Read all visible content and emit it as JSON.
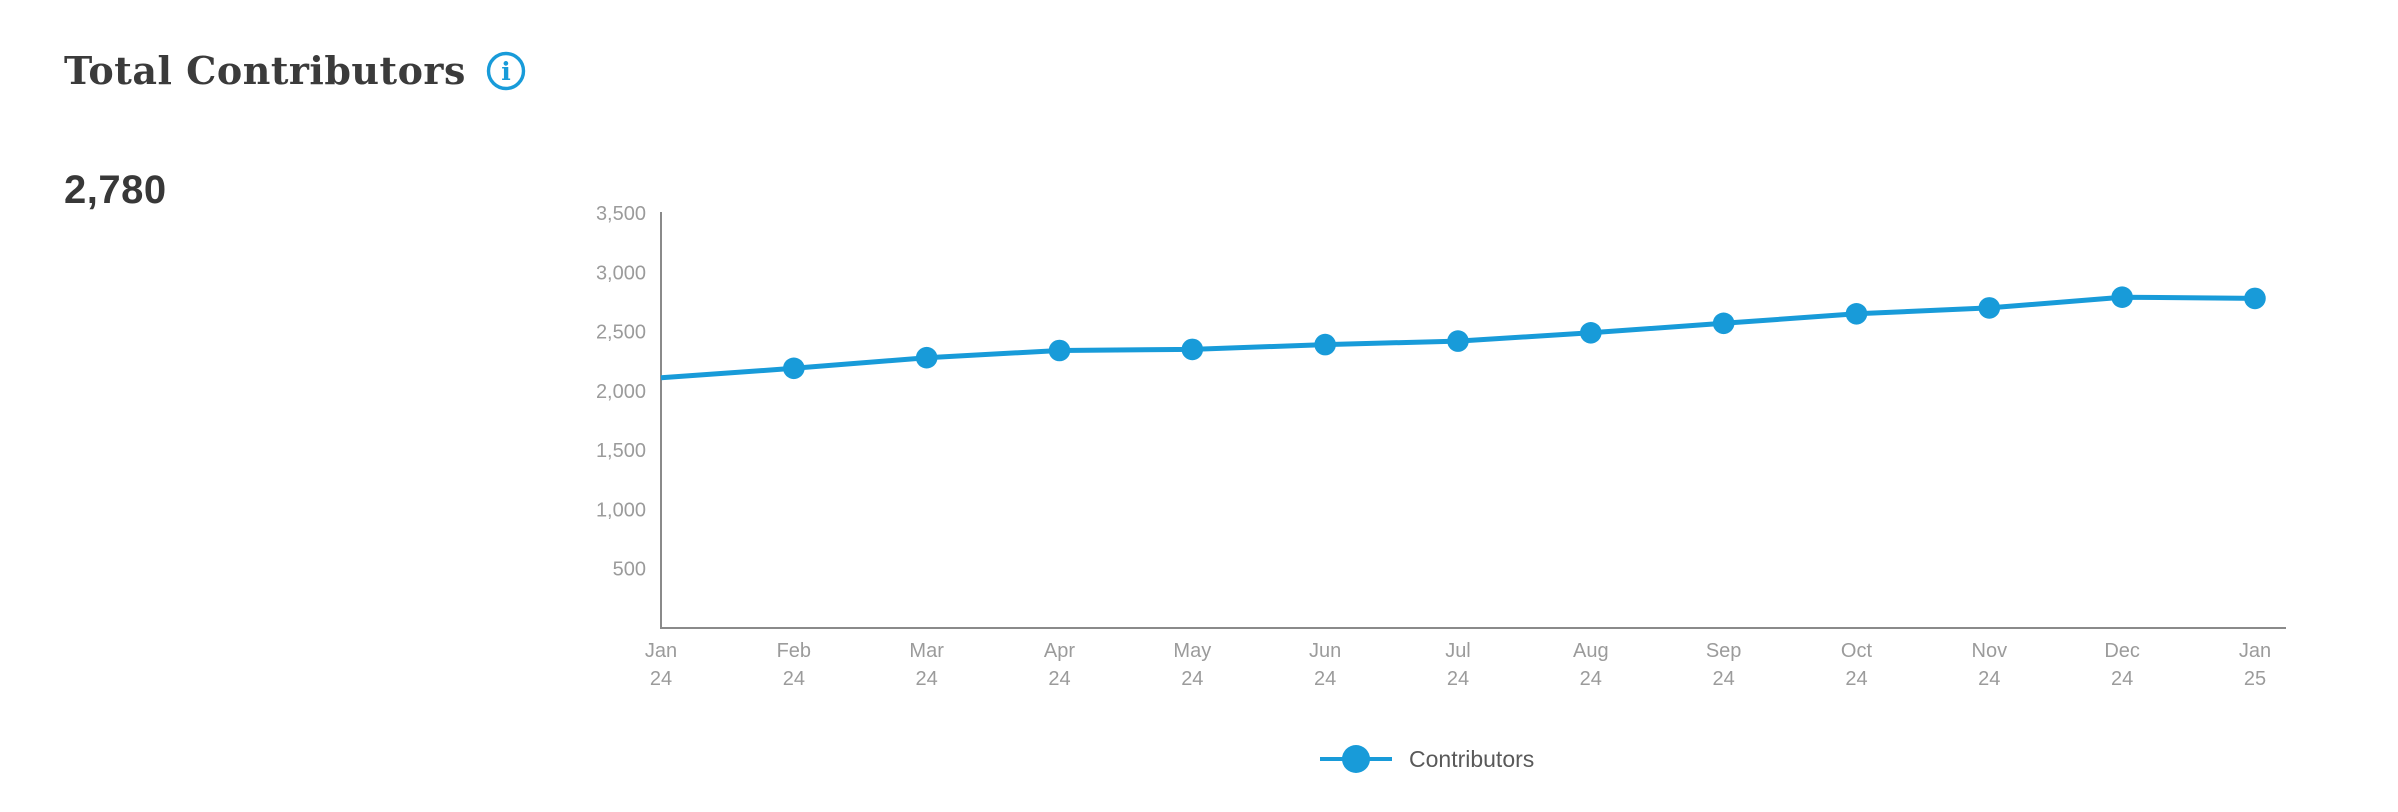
{
  "metric": {
    "title": "Total Contributors",
    "value": "2,780"
  },
  "colors": {
    "accent_blue": "#189bd9",
    "axis_line": "#8a8a8a",
    "tick_text": "#9b9b9b",
    "title_text": "#3b3b3b",
    "value_text": "#383838",
    "legend_text": "#595959"
  },
  "icons": {
    "info": "i"
  },
  "legend": {
    "items": [
      {
        "label": "Contributors",
        "color": "#189bd9"
      }
    ]
  },
  "chart_data": {
    "type": "line",
    "title": "Total Contributors",
    "categories": [
      "Jan 24",
      "Feb 24",
      "Mar 24",
      "Apr 24",
      "May 24",
      "Jun 24",
      "Jul 24",
      "Aug 24",
      "Sep 24",
      "Oct 24",
      "Nov 24",
      "Dec 24",
      "Jan 25"
    ],
    "series": [
      {
        "name": "Contributors",
        "color": "#189bd9",
        "values": [
          2110,
          2190,
          2280,
          2340,
          2350,
          2390,
          2420,
          2490,
          2570,
          2650,
          2700,
          2790,
          2780
        ],
        "marker_on_first_point": false
      }
    ],
    "xlabel": "",
    "ylabel": "",
    "ylim": [
      0,
      3500
    ],
    "y_ticks": [
      500,
      1000,
      1500,
      2000,
      2500,
      3000,
      3500
    ],
    "grid": false,
    "legend_position": "bottom"
  }
}
